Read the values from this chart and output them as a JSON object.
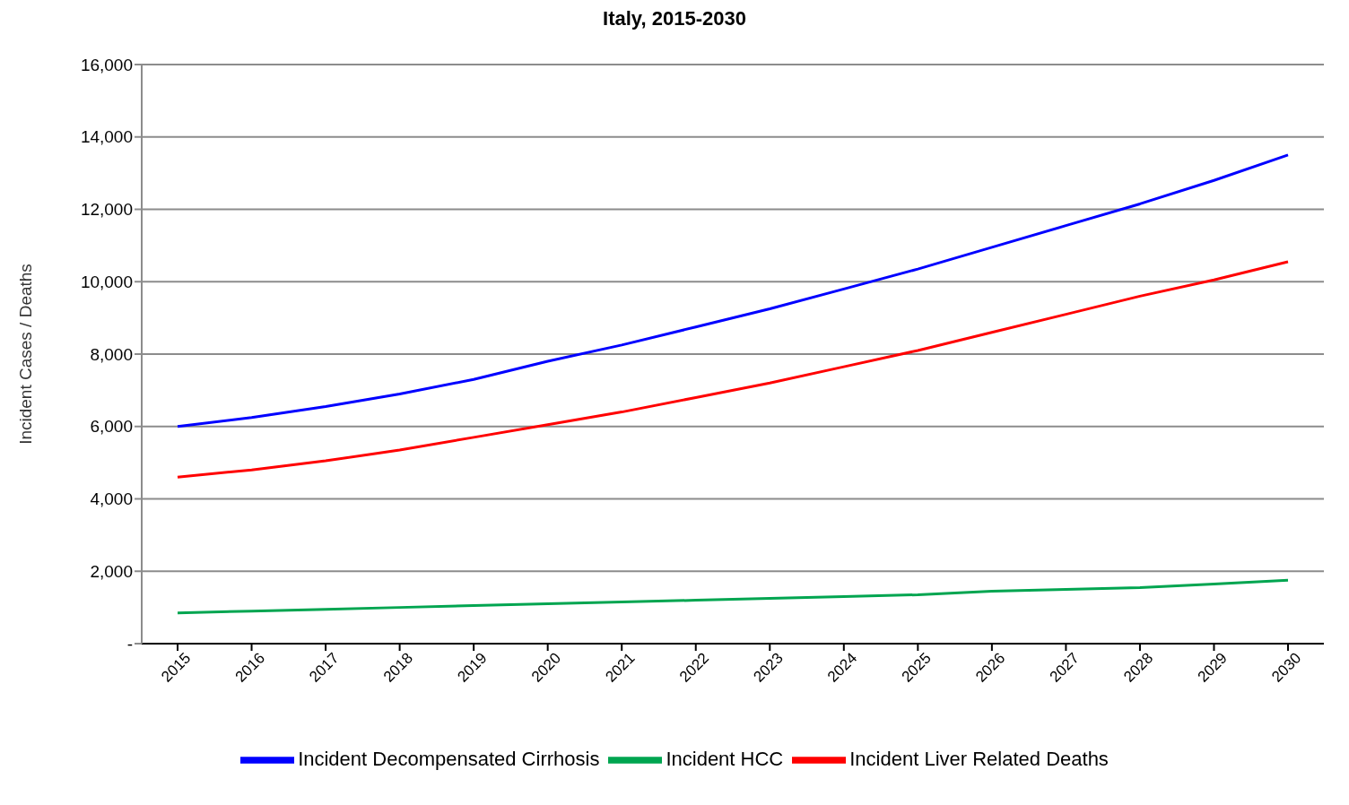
{
  "chart_data": {
    "type": "line",
    "title": "Italy, 2015-2030",
    "ylabel": "Incident Cases / Deaths",
    "categories": [
      "2015",
      "2016",
      "2017",
      "2018",
      "2019",
      "2020",
      "2021",
      "2022",
      "2023",
      "2024",
      "2025",
      "2026",
      "2027",
      "2028",
      "2029",
      "2030"
    ],
    "series": [
      {
        "name": "Incident Decompensated Cirrhosis",
        "color": "#0000ff",
        "values": [
          6000,
          6250,
          6550,
          6900,
          7300,
          7800,
          8250,
          8750,
          9250,
          9800,
          10350,
          10950,
          11550,
          12150,
          12800,
          13500
        ]
      },
      {
        "name": "Incident HCC",
        "color": "#00a550",
        "values": [
          850,
          900,
          950,
          1000,
          1050,
          1100,
          1150,
          1200,
          1250,
          1300,
          1350,
          1450,
          1500,
          1550,
          1650,
          1750
        ]
      },
      {
        "name": "Incident Liver Related Deaths",
        "color": "#ff0000",
        "values": [
          4600,
          4800,
          5050,
          5350,
          5700,
          6050,
          6400,
          6800,
          7200,
          7650,
          8100,
          8600,
          9100,
          9600,
          10050,
          10550
        ]
      }
    ],
    "ylim": [
      0,
      16000
    ],
    "yticks": [
      {
        "value": 0,
        "label": "-"
      },
      {
        "value": 2000,
        "label": "2,000"
      },
      {
        "value": 4000,
        "label": "4,000"
      },
      {
        "value": 6000,
        "label": "6,000"
      },
      {
        "value": 8000,
        "label": "8,000"
      },
      {
        "value": 10000,
        "label": "10,000"
      },
      {
        "value": 12000,
        "label": "12,000"
      },
      {
        "value": 14000,
        "label": "14,000"
      },
      {
        "value": 16000,
        "label": "16,000"
      }
    ],
    "grid": "y",
    "legend": "bottom",
    "marker": "none",
    "line_style": "solid"
  }
}
